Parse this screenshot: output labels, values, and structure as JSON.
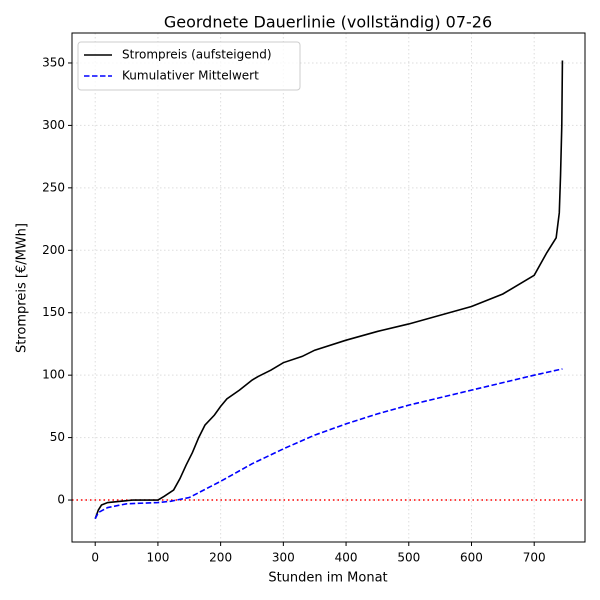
{
  "chart_data": {
    "type": "line",
    "title": "Geordnete Dauerlinie (vollständig) 07-26",
    "x_label": "Stunden im Monat",
    "y_label": "Strompreis [€/MWh]",
    "xlim": [
      -37,
      781
    ],
    "ylim": [
      -33.6,
      374
    ],
    "xticks": [
      0,
      100,
      200,
      300,
      400,
      500,
      600,
      700
    ],
    "yticks": [
      0,
      50,
      100,
      150,
      200,
      250,
      300,
      350
    ],
    "grid": true,
    "legend": "upper left",
    "hline": {
      "value": 0,
      "color": "#ff0000"
    },
    "series": [
      {
        "name": "Strompreis (aufsteigend)",
        "color": "#000000",
        "dash": "solid",
        "x": [
          0,
          5,
          10,
          20,
          40,
          60,
          100,
          110,
          125,
          135,
          145,
          155,
          165,
          175,
          190,
          200,
          210,
          230,
          250,
          260,
          280,
          300,
          330,
          350,
          400,
          450,
          500,
          550,
          600,
          650,
          700,
          720,
          735,
          740,
          742,
          744,
          745
        ],
        "values": [
          -15,
          -8,
          -4,
          -2,
          -1,
          0,
          0,
          3,
          8,
          17,
          28,
          38,
          50,
          60,
          68,
          75,
          81,
          88,
          96,
          99,
          104,
          110,
          115,
          120,
          128,
          135,
          141,
          148,
          155,
          165,
          180,
          198,
          210,
          230,
          260,
          300,
          352
        ]
      },
      {
        "name": "Kumulativer Mittelwert",
        "color": "#0000ff",
        "dash": "dashed",
        "x": [
          0,
          5,
          20,
          50,
          100,
          120,
          150,
          200,
          250,
          300,
          350,
          400,
          450,
          500,
          550,
          600,
          650,
          700,
          745
        ],
        "values": [
          -15,
          -10,
          -6,
          -3,
          -2,
          -1,
          2,
          15,
          29,
          41,
          52,
          61,
          69,
          76,
          82,
          88,
          94,
          100,
          105
        ]
      }
    ]
  }
}
